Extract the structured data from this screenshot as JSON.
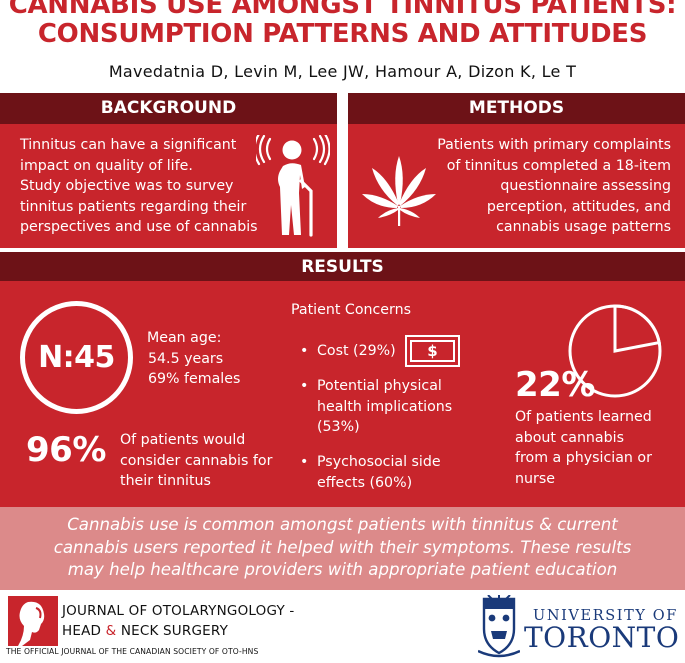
{
  "title": {
    "line1": "CANNABIS USE AMONGST TINNITUS PATIENTS:",
    "line2": "CONSUMPTION PATTERNS AND ATTITUDES"
  },
  "authors": "Mavedatnia D, Levin M, Lee JW, Hamour A, Dizon K, Le T",
  "background": {
    "header": "BACKGROUND",
    "lines": [
      "Tinnitus can have a significant",
      "impact on quality of life.",
      "Study objective was to survey",
      "tinnitus patients regarding their",
      "perspectives and use of cannabis"
    ],
    "icon": "elderly-person-with-sound-waves-icon"
  },
  "methods": {
    "header": "METHODS",
    "lines": [
      "Patients with primary complaints",
      "of tinnitus completed a 18-item",
      "questionnaire assessing",
      "perception, attitudes, and",
      "cannabis usage patterns"
    ],
    "icon": "cannabis-leaf-icon"
  },
  "results": {
    "header": "RESULTS",
    "n_label": "N:45",
    "demographics": [
      "Mean age:",
      "54.5 years",
      "69% females"
    ],
    "consider_pct": "96%",
    "consider_text": [
      "Of patients would",
      "consider cannabis for",
      "their tinnitus"
    ],
    "concerns_title": "Patient Concerns",
    "concerns": [
      {
        "lines": [
          "Cost (29%)"
        ]
      },
      {
        "lines": [
          "Potential physical",
          "health implications",
          "(53%)"
        ]
      },
      {
        "lines": [
          "Psychosocial side",
          "effects (60%)"
        ]
      }
    ],
    "dollar_glyph": "$",
    "physician_pct": "22%",
    "physician_pct_value": 22,
    "physician_text": [
      "Of patients learned",
      "about cannabis",
      "from a physician or",
      "nurse"
    ]
  },
  "conclusion": {
    "lines": [
      "Cannabis use is common amongst patients with tinnitus & current",
      "cannabis users reported it helped with their symptoms. These results",
      "may help healthcare providers with appropriate patient education"
    ]
  },
  "footer": {
    "journal_line1": "JOURNAL OF OTOLARYNGOLOGY -",
    "journal_line2_a": "HEAD ",
    "journal_amp": "&",
    "journal_line2_b": " NECK SURGERY",
    "journal_sub": "THE OFFICIAL JOURNAL OF THE CANADIAN SOCIETY OF OTO-HNS",
    "univ_line1": "UNIVERSITY OF",
    "univ_line2": "TORONTO"
  },
  "colors": {
    "brand_red": "#c8252c",
    "dark_red": "#6d1217",
    "pink": "#dc8a8a",
    "uoft_blue": "#1a3a7a"
  }
}
